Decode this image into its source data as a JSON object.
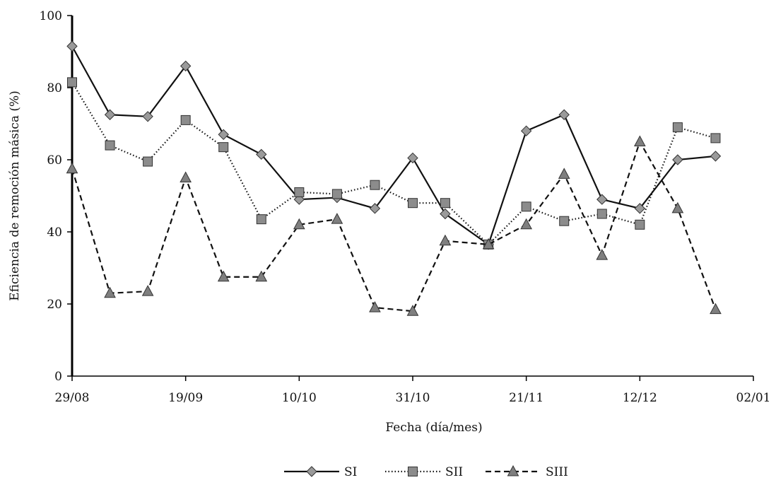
{
  "chart_data": {
    "type": "line",
    "title": "",
    "xlabel": "Fecha (día/mes)",
    "ylabel": "Eficiencia de remoción másica (%)",
    "ylim": [
      0,
      100
    ],
    "yticks": [
      0,
      20,
      40,
      60,
      80,
      100
    ],
    "x_tick_labels": [
      "29/08",
      "19/09",
      "10/10",
      "31/10",
      "21/11",
      "12/12",
      "02/01"
    ],
    "x_tick_days": [
      0,
      21,
      42,
      63,
      84,
      105,
      126
    ],
    "x": [
      "29/08",
      "06/09",
      "14/09",
      "19/09",
      "27/09",
      "05/10",
      "10/10",
      "17/10",
      "26/10",
      "31/10",
      "06/11",
      "14/11",
      "21/11",
      "28/11",
      "05/12",
      "12/12",
      "19/12",
      "26/12"
    ],
    "x_days": [
      0,
      7,
      14,
      21,
      28,
      35,
      42,
      49,
      56,
      63,
      69,
      77,
      84,
      91,
      98,
      105,
      112,
      119
    ],
    "grid": false,
    "legend_position": "bottom",
    "series": [
      {
        "name": "SI",
        "style": "solid",
        "marker": "diamond",
        "values": [
          91.5,
          72.5,
          72,
          86,
          67,
          61.5,
          49,
          49.5,
          46.5,
          60.5,
          45,
          36.5,
          68,
          72.5,
          49,
          46.5,
          60,
          61
        ]
      },
      {
        "name": "SII",
        "style": "dotted",
        "marker": "square",
        "values": [
          81.5,
          64,
          59.5,
          71,
          63.5,
          43.5,
          51,
          50.5,
          53,
          48,
          48,
          36.5,
          47,
          43,
          45,
          42,
          69,
          66
        ]
      },
      {
        "name": "SIII",
        "style": "dashed",
        "marker": "triangle",
        "values": [
          57.5,
          23,
          23.5,
          55,
          27.5,
          27.5,
          42,
          43.5,
          19,
          18,
          37.5,
          36.5,
          42,
          56,
          33.5,
          65,
          46.5,
          18.5
        ]
      }
    ]
  }
}
